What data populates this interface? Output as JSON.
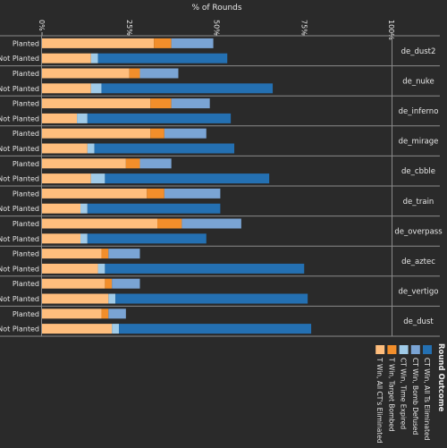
{
  "chart_data": {
    "type": "bar",
    "stacked": true,
    "orientation": "horizontal",
    "title": "",
    "xlabel": "% of Rounds",
    "ylabel": "",
    "xlim": [
      0,
      100
    ],
    "x_ticks": [
      "0%",
      "25%",
      "50%",
      "75%",
      "100%"
    ],
    "grid": false,
    "maps": [
      "de_dust2",
      "de_nuke",
      "de_inferno",
      "de_mirage",
      "de_cbble",
      "de_train",
      "de_overpass",
      "de_aztec",
      "de_vertigo",
      "de_dust"
    ],
    "row_labels": [
      "Planted",
      "Not Planted"
    ],
    "series": [
      {
        "name": "T Win, All CT's Eliminated",
        "color": "#ffbe7d",
        "planted": [
          32,
          25,
          31,
          31,
          24,
          30,
          33,
          17,
          18,
          17
        ],
        "not_planted": [
          14,
          14,
          10,
          13,
          14,
          11,
          11,
          16,
          19,
          20
        ]
      },
      {
        "name": "T Win, Target Bombed",
        "color": "#f28e2b",
        "planted": [
          5,
          3,
          6,
          4,
          4,
          5,
          7,
          2,
          2,
          2
        ],
        "not_planted": [
          0,
          0,
          0,
          0,
          0,
          0,
          0,
          0,
          0,
          0
        ]
      },
      {
        "name": "CT Win, Time Expired",
        "color": "#a0cbe8",
        "planted": [
          0,
          0,
          0,
          0,
          0,
          0,
          0,
          0,
          0,
          0
        ],
        "not_planted": [
          2,
          3,
          3,
          2,
          4,
          2,
          2,
          2,
          2,
          2
        ]
      },
      {
        "name": "CT Win, Bomb Defused",
        "color": "#7aa4d4",
        "planted": [
          12,
          11,
          11,
          12,
          9,
          16,
          17,
          9,
          8,
          5
        ],
        "not_planted": [
          0,
          0,
          0,
          0,
          0,
          0,
          0,
          0,
          0,
          0
        ]
      },
      {
        "name": "CT Win, All Ts Eliminated",
        "color": "#2470b2",
        "planted": [
          0,
          0,
          0,
          0,
          0,
          0,
          0,
          0,
          0,
          0
        ],
        "not_planted": [
          37,
          49,
          41,
          40,
          47,
          38,
          34,
          57,
          55,
          55
        ]
      }
    ],
    "legend": {
      "title": "Round Outcome",
      "placement": "bottom-right"
    }
  }
}
